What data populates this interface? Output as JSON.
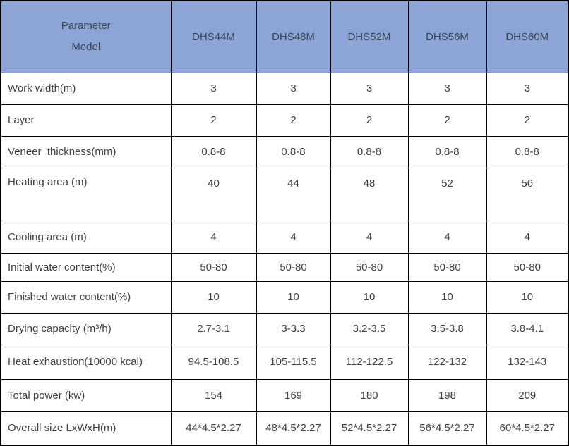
{
  "table": {
    "header": {
      "corner_line1": "Parameter",
      "corner_line2": "Model",
      "models": [
        "DHS44M",
        "DHS48M",
        "DHS52M",
        "DHS56M",
        "DHS60M"
      ]
    },
    "rows": [
      {
        "label": "Work width(m)",
        "values": [
          "3",
          "3",
          "3",
          "3",
          "3"
        ]
      },
      {
        "label": "Layer",
        "values": [
          "2",
          "2",
          "2",
          "2",
          "2"
        ]
      },
      {
        "label": "Veneer  thickness(mm)",
        "values": [
          "0.8-8",
          "0.8-8",
          "0.8-8",
          "0.8-8",
          "0.8-8"
        ]
      },
      {
        "label": "Heating area (m)",
        "values": [
          "40",
          "44",
          "48",
          "52",
          "56"
        ]
      },
      {
        "label": "Cooling area (m)",
        "values": [
          "4",
          "4",
          "4",
          "4",
          "4"
        ]
      },
      {
        "label": "Initial water content(%)",
        "values": [
          "50-80",
          "50-80",
          "50-80",
          "50-80",
          "50-80"
        ]
      },
      {
        "label": "Finished water content(%)",
        "values": [
          "10",
          "10",
          "10",
          "10",
          "10"
        ]
      },
      {
        "label": "Drying capacity (m³/h)",
        "values": [
          "2.7-3.1",
          "3-3.3",
          "3.2-3.5",
          "3.5-3.8",
          "3.8-4.1"
        ]
      },
      {
        "label": "Heat exhaustion(10000 kcal)",
        "values": [
          "94.5-108.5",
          "105-115.5",
          "112-122.5",
          "122-132",
          "132-143"
        ]
      },
      {
        "label": "Total power (kw)",
        "values": [
          "154",
          "169",
          "180",
          "198",
          "209"
        ]
      },
      {
        "label": "Overall size LxWxH(m)",
        "values": [
          "44*4.5*2.27",
          "48*4.5*2.27",
          "52*4.5*2.27",
          "56*4.5*2.27",
          "60*4.5*2.27"
        ]
      }
    ],
    "colors": {
      "header_bg": "#8CA4D6",
      "header_text": "#3C4856",
      "body_text": "#404040",
      "border": "#000000"
    }
  }
}
